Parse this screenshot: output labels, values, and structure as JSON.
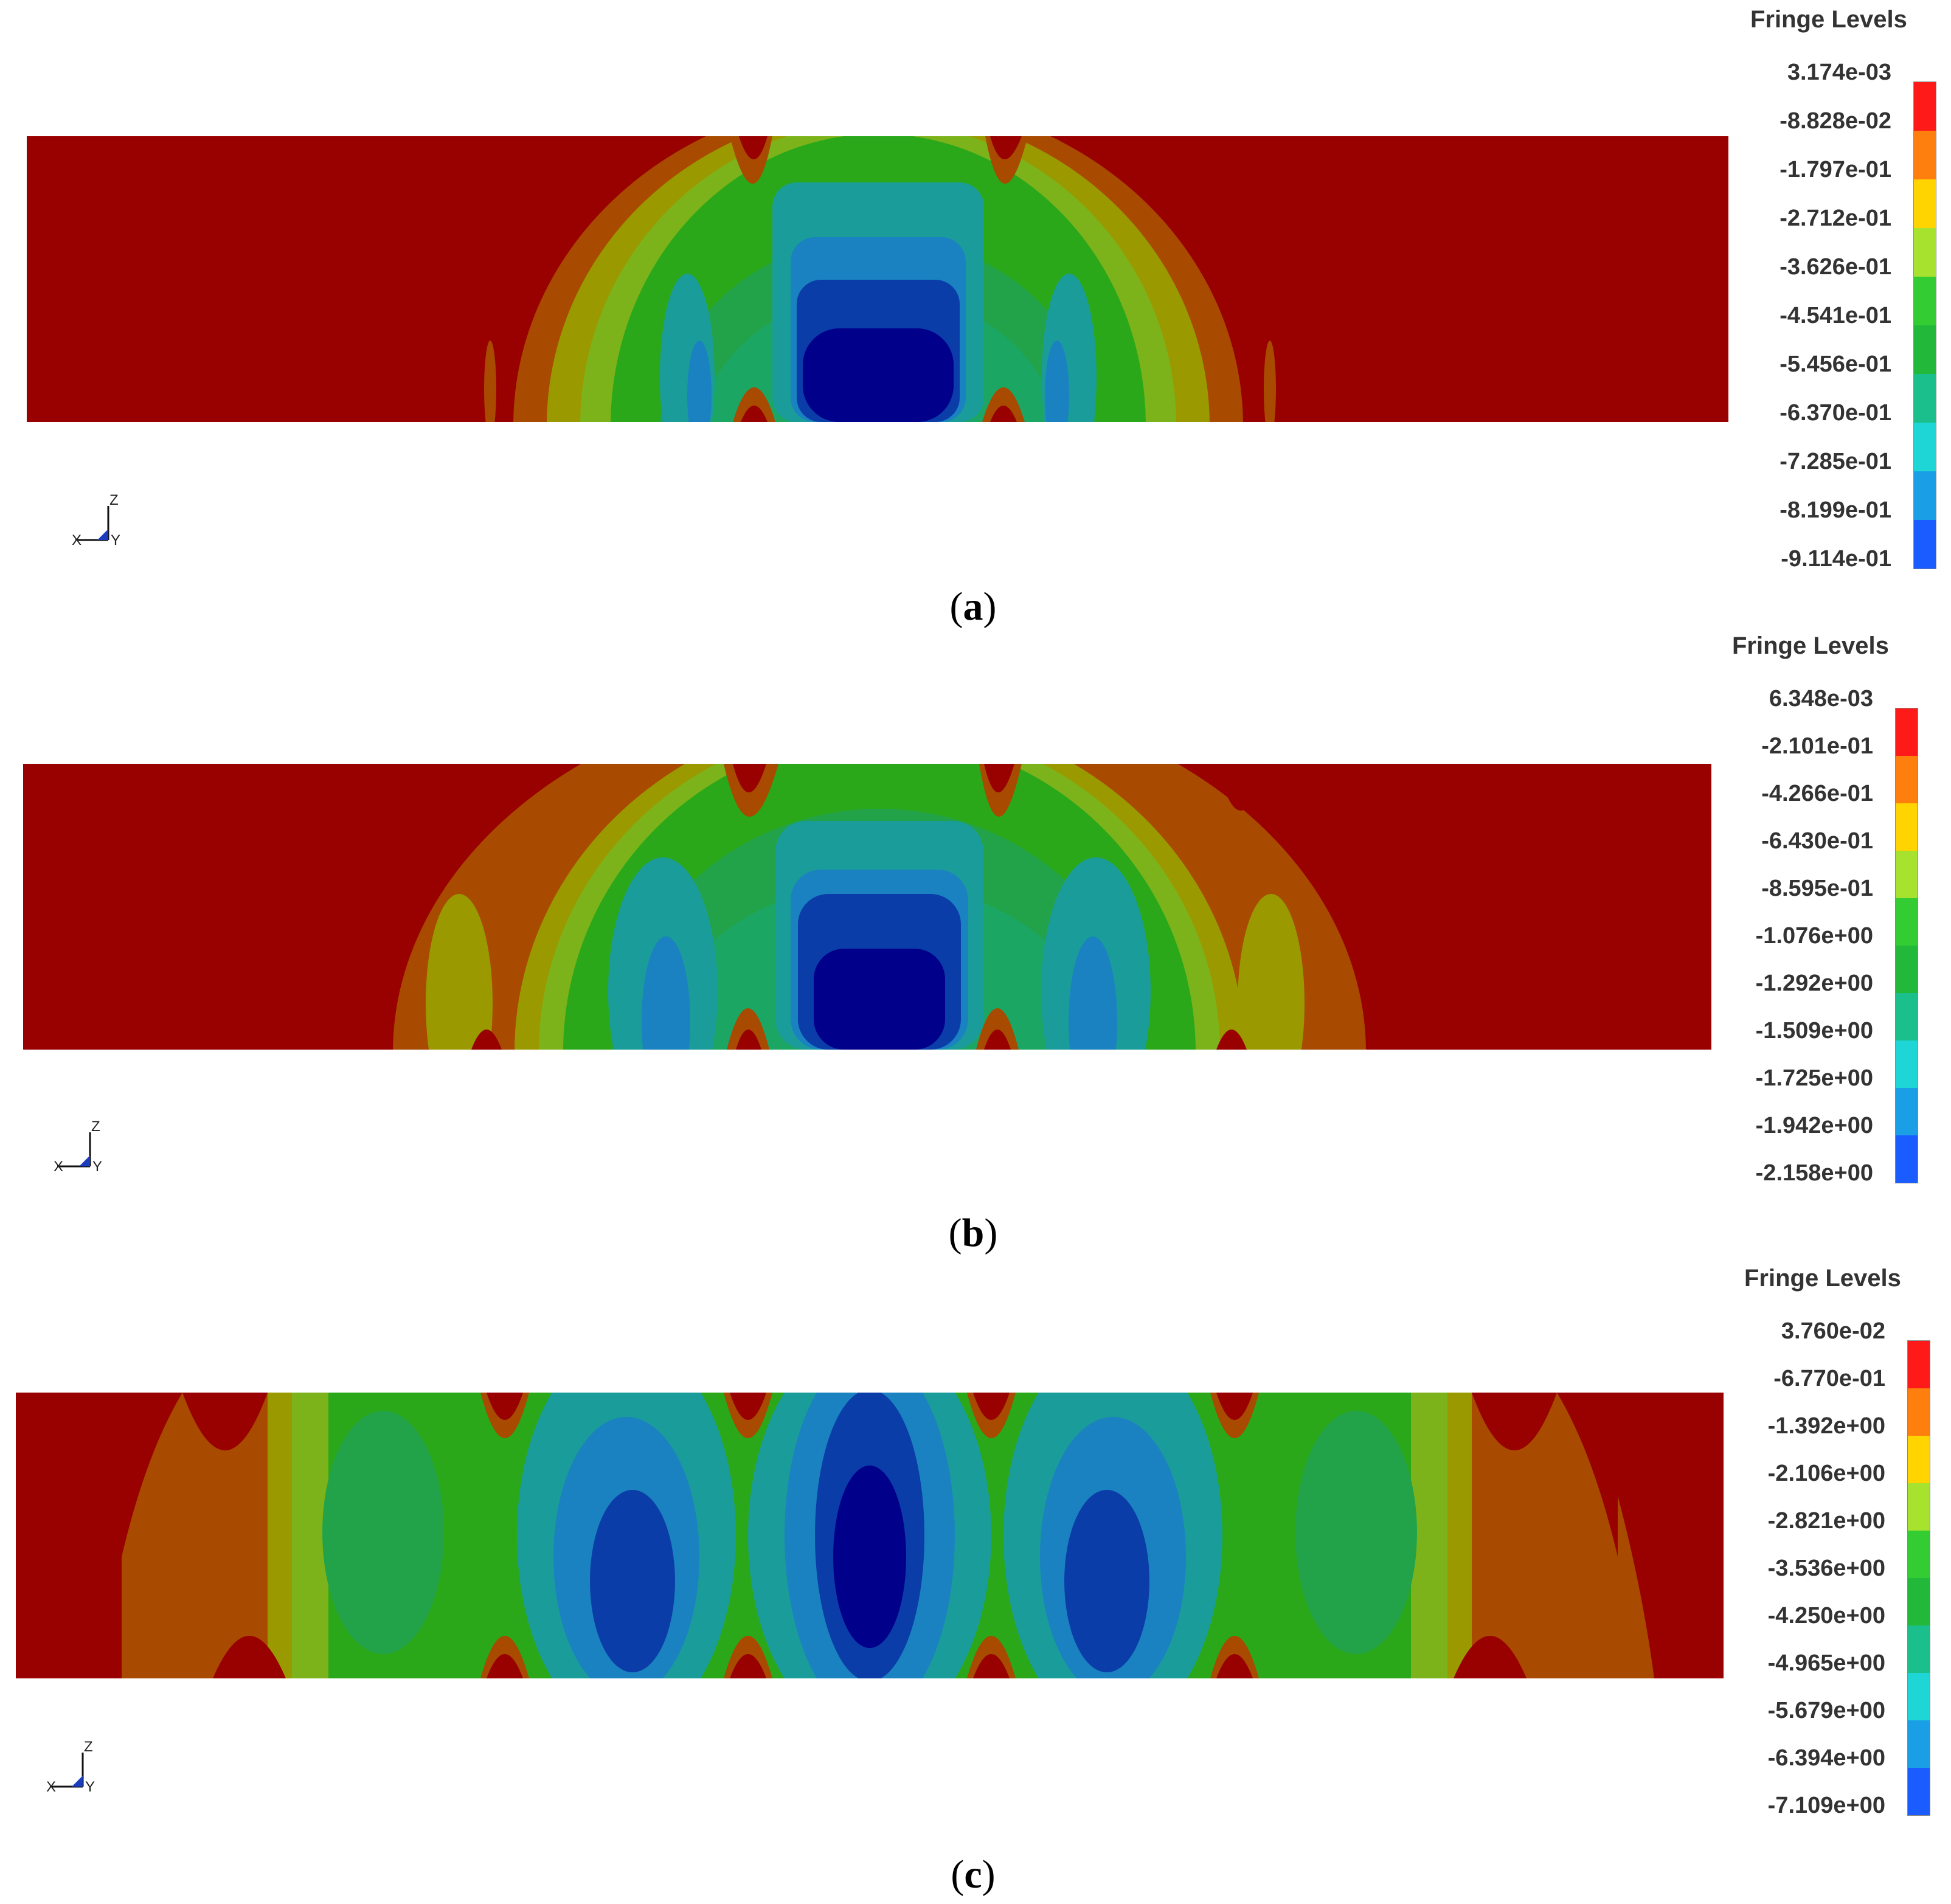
{
  "colors": {
    "background": "#ffffff",
    "levels": [
      "#ff1a1a",
      "#ff7f0e",
      "#ffd400",
      "#a6e22e",
      "#33cc33",
      "#22b83a",
      "#1abf8c",
      "#1fd6d6",
      "#1a9fe6",
      "#1a5cff",
      "#0000e0"
    ],
    "field": {
      "base_red": "#990000",
      "orange": "#a84a00",
      "olive": "#9a9a00",
      "yellow_green": "#7db31a",
      "green": "#2aa81a",
      "green_teal": "#1ca664",
      "teal": "#1a9d9a",
      "cyan_blue": "#1a82c0",
      "blue": "#0a3da8",
      "deep_blue": "#00008b"
    }
  },
  "panels": [
    {
      "id": "a",
      "caption": "a",
      "legend": {
        "title": "Fringe Levels",
        "levels": [
          "3.174e-03",
          "-8.828e-02",
          "-1.797e-01",
          "-2.712e-01",
          "-3.626e-01",
          "-4.541e-01",
          "-5.456e-01",
          "-6.370e-01",
          "-7.285e-01",
          "-8.199e-01",
          "-9.114e-01"
        ]
      },
      "axis_icon": {
        "x": "X",
        "y": "Y",
        "z": "Z"
      }
    },
    {
      "id": "b",
      "caption": "b",
      "legend": {
        "title": "Fringe Levels",
        "levels": [
          "6.348e-03",
          "-2.101e-01",
          "-4.266e-01",
          "-6.430e-01",
          "-8.595e-01",
          "-1.076e+00",
          "-1.292e+00",
          "-1.509e+00",
          "-1.725e+00",
          "-1.942e+00",
          "-2.158e+00"
        ]
      },
      "axis_icon": {
        "x": "X",
        "y": "Y",
        "z": "Z"
      }
    },
    {
      "id": "c",
      "caption": "c",
      "legend": {
        "title": "Fringe Levels",
        "levels": [
          "3.760e-02",
          "-6.770e-01",
          "-1.392e+00",
          "-2.106e+00",
          "-2.821e+00",
          "-3.536e+00",
          "-4.250e+00",
          "-4.965e+00",
          "-5.679e+00",
          "-6.394e+00",
          "-7.109e+00"
        ]
      },
      "axis_icon": {
        "x": "X",
        "y": "Y",
        "z": "Z"
      }
    }
  ]
}
